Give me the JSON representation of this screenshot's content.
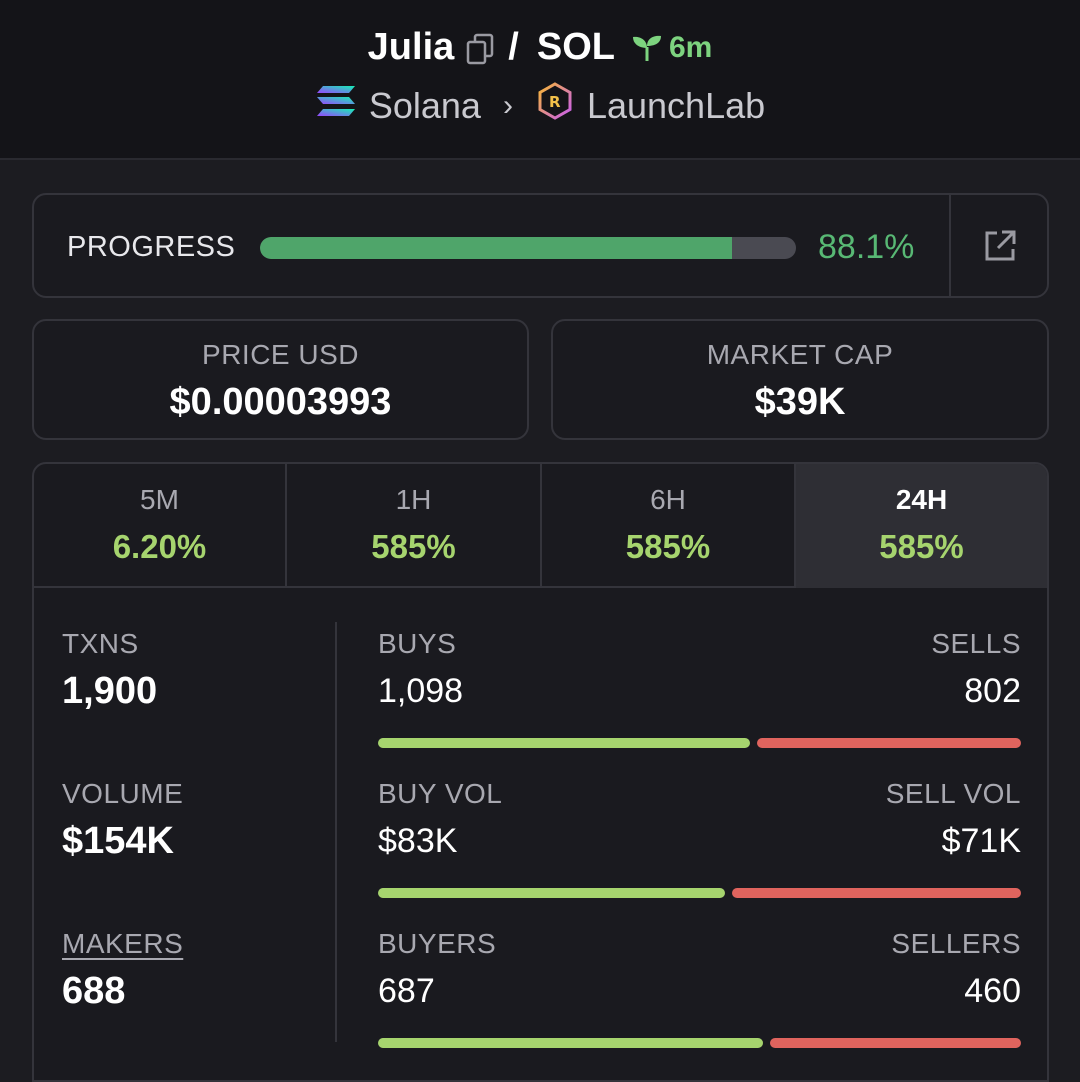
{
  "header": {
    "token_name": "Julia",
    "separator": "/",
    "quote_token": "SOL",
    "age": "6m",
    "chain": "Solana",
    "platform": "LaunchLab"
  },
  "progress": {
    "label": "PROGRESS",
    "value_text": "88.1%",
    "fraction": 0.881
  },
  "stats": {
    "price_label": "PRICE USD",
    "price_value": "$0.00003993",
    "mcap_label": "MARKET CAP",
    "mcap_value": "$39K"
  },
  "tabs": [
    {
      "label": "5M",
      "value": "6.20%"
    },
    {
      "label": "1H",
      "value": "585%"
    },
    {
      "label": "6H",
      "value": "585%"
    },
    {
      "label": "24H",
      "value": "585%"
    }
  ],
  "metrics": {
    "txns_label": "TXNS",
    "txns_value": "1,900",
    "volume_label": "VOLUME",
    "volume_value": "$154K",
    "makers_label": "MAKERS",
    "makers_value": "688"
  },
  "splits": {
    "buys_label": "BUYS",
    "sells_label": "SELLS",
    "buys_value": "1,098",
    "sells_value": "802",
    "buyvol_label": "BUY VOL",
    "sellvol_label": "SELL VOL",
    "buyvol_value": "$83K",
    "sellvol_value": "$71K",
    "buyers_label": "BUYERS",
    "sellers_label": "SELLERS",
    "buyers_value": "687",
    "sellers_value": "460",
    "buys_fraction": 0.578,
    "buyvol_fraction": 0.539,
    "buyers_fraction": 0.599
  },
  "colors": {
    "accent_green": "#58b874",
    "buy_green": "#a6d46e",
    "sell_red": "#e0645e"
  }
}
